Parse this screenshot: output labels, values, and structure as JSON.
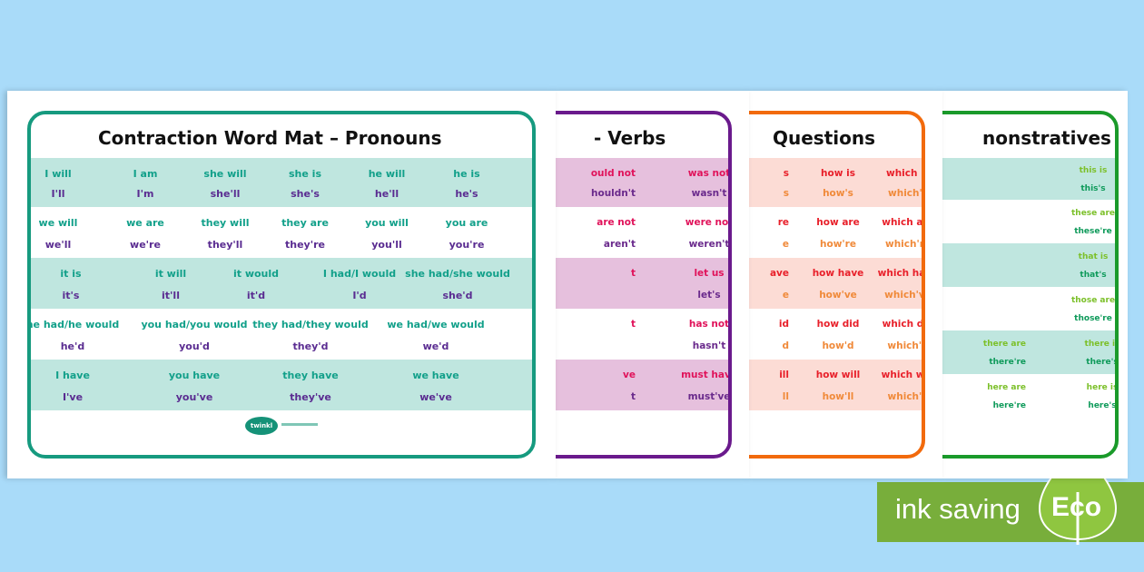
{
  "colors": {
    "background": "#a9dbf9",
    "eco_green": "#78ae3b"
  },
  "cards": [
    {
      "title": "Contraction Word Mat – Pronouns",
      "border": "#169a7f",
      "band": "#bfe6df",
      "top_color": "#12a08a",
      "bottom_color": "#5a2c91",
      "rows": [
        [
          [
            "I will",
            "I'll"
          ],
          [
            "I am",
            "I'm"
          ],
          [
            "she will",
            "she'll"
          ],
          [
            "she is",
            "she's"
          ],
          [
            "he will",
            "he'll"
          ],
          [
            "he is",
            "he's"
          ]
        ],
        [
          [
            "we will",
            "we'll"
          ],
          [
            "we are",
            "we're"
          ],
          [
            "they will",
            "they'll"
          ],
          [
            "they are",
            "they're"
          ],
          [
            "you will",
            "you'll"
          ],
          [
            "you are",
            "you're"
          ]
        ],
        [
          [
            "it is",
            "it's"
          ],
          [
            "it will",
            "it'll"
          ],
          [
            "it would",
            "it'd"
          ],
          [
            "I had/I would",
            "I'd"
          ],
          [
            "she had/she would",
            "she'd"
          ]
        ],
        [
          [
            "he had/he would",
            "he'd"
          ],
          [
            "you had/you would",
            "you'd"
          ],
          [
            "they had/they would",
            "they'd"
          ],
          [
            "we had/we would",
            "we'd"
          ]
        ],
        [
          [
            "I have",
            "I've"
          ],
          [
            "you have",
            "you've"
          ],
          [
            "they have",
            "they've"
          ],
          [
            "we have",
            "we've"
          ]
        ]
      ],
      "logo": "twinkl"
    },
    {
      "title": "- Verbs",
      "border": "#6a1a8c",
      "band": "#e6c0dd",
      "top_color": "#e0125a",
      "bottom_color": "#6a2a8c",
      "rows": [
        [
          [
            "ould not",
            "houldn't"
          ],
          [
            "was not",
            "wasn't"
          ]
        ],
        [
          [
            "are not",
            "aren't"
          ],
          [
            "were not",
            "weren't"
          ]
        ],
        [
          [
            "t",
            ""
          ],
          [
            "let us",
            "let's"
          ]
        ],
        [
          [
            "t",
            ""
          ],
          [
            "has not",
            "hasn't"
          ]
        ],
        [
          [
            "ve",
            "t"
          ],
          [
            "must have",
            "must've"
          ]
        ]
      ]
    },
    {
      "title": "Questions",
      "border": "#f26a0c",
      "band": "#fcdcd5",
      "top_color": "#e8202a",
      "bottom_color": "#f08a3a",
      "rows": [
        [
          [
            "s",
            "s"
          ],
          [
            "how is",
            "how's"
          ],
          [
            "which is",
            "which's"
          ]
        ],
        [
          [
            "re",
            "e"
          ],
          [
            "how are",
            "how're"
          ],
          [
            "which are",
            "which're"
          ]
        ],
        [
          [
            "ave",
            "e"
          ],
          [
            "how have",
            "how've"
          ],
          [
            "which have",
            "which've"
          ]
        ],
        [
          [
            "id",
            "d"
          ],
          [
            "how did",
            "how'd"
          ],
          [
            "which did",
            "which'd"
          ]
        ],
        [
          [
            "ill",
            "ll"
          ],
          [
            "how will",
            "how'll"
          ],
          [
            "which will",
            "which'll"
          ]
        ]
      ]
    },
    {
      "title": "nonstratives",
      "border": "#1a9a2a",
      "band": "#bfe6df",
      "top_color": "#7cc02a",
      "bottom_color": "#0e9a5a",
      "rows": [
        [
          [
            "",
            ""
          ],
          [
            "this is",
            "this's"
          ]
        ],
        [
          [
            "",
            ""
          ],
          [
            "these are",
            "these're"
          ]
        ],
        [
          [
            "",
            ""
          ],
          [
            "that is",
            "that's"
          ]
        ],
        [
          [
            "",
            ""
          ],
          [
            "those are",
            "those're"
          ]
        ],
        [
          [
            "there are",
            "there're"
          ],
          [
            "there is",
            "there's"
          ]
        ],
        [
          [
            "here are",
            "here're"
          ],
          [
            "here is",
            "here's"
          ]
        ]
      ]
    }
  ],
  "eco_badge": {
    "label": "ink saving",
    "badge": "Eco"
  }
}
